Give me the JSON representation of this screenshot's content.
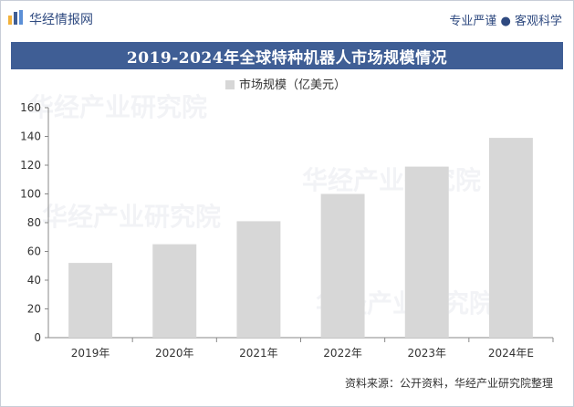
{
  "header": {
    "brand_name": "华经情报网",
    "slogan": "专业严谨 ● 客观科学"
  },
  "title": "2019-2024年全球特种机器人市场规模情况",
  "source": "资料来源：公开资料，华经产业研究院整理",
  "watermarks": [
    "华经产业研究院",
    "华经产业研究院",
    "华经产业研究院",
    "华经产业研究院"
  ],
  "colors": {
    "bar": "#d7d7d7",
    "title_bg": "#3f5e95",
    "brand": "#2f4a80"
  },
  "chart_data": {
    "type": "bar",
    "categories": [
      "2019年",
      "2020年",
      "2021年",
      "2022年",
      "2023年",
      "2024年E"
    ],
    "series": [
      {
        "name": "市场规模（亿美元）",
        "values": [
          52,
          65,
          81,
          100,
          119,
          139
        ]
      }
    ],
    "ylim": [
      0,
      160
    ],
    "yticks": [
      "0",
      "20",
      "40",
      "60",
      "80",
      "100",
      "120",
      "140",
      "160"
    ],
    "legend_position": "top-center",
    "grid": false
  }
}
